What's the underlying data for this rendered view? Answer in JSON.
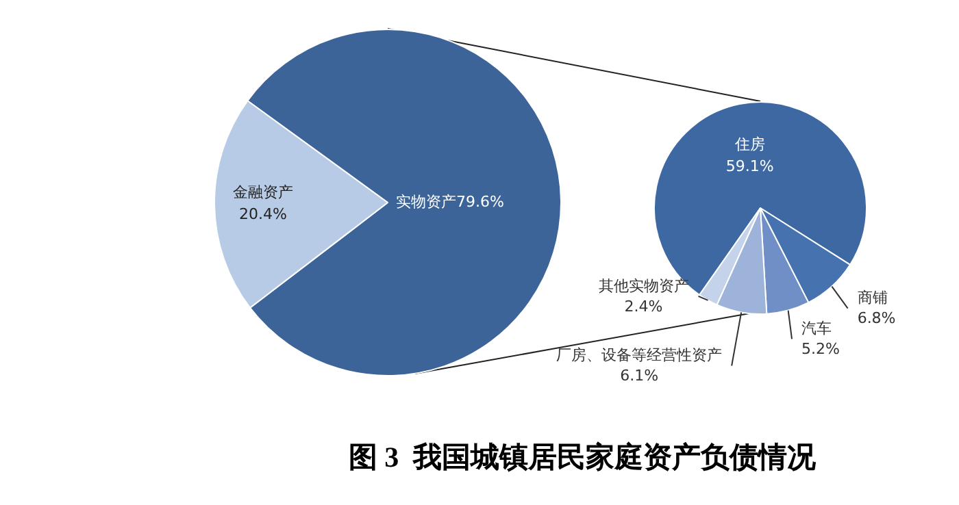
{
  "chart_data": [
    {
      "type": "pie",
      "title": "图 3  我国城镇居民家庭资产负债情况",
      "categories": [
        "实物资产",
        "金融资产"
      ],
      "values": [
        79.6,
        20.4
      ],
      "value_labels": [
        "79.6%",
        "20.4%"
      ],
      "colors": [
        "#3c6499",
        "#b7cbe6"
      ]
    },
    {
      "type": "pie",
      "categories": [
        "住房",
        "商铺",
        "汽车",
        "厂房、设备等经营性资产",
        "其他实物资产"
      ],
      "values": [
        59.1,
        6.8,
        5.2,
        6.1,
        2.4
      ],
      "value_labels": [
        "59.1%",
        "6.8%",
        "5.2%",
        "6.1%",
        "2.4%"
      ],
      "colors": [
        "#3d68a2",
        "#4673b0",
        "#6f8fc6",
        "#9db3da",
        "#c4d2ea"
      ]
    }
  ]
}
